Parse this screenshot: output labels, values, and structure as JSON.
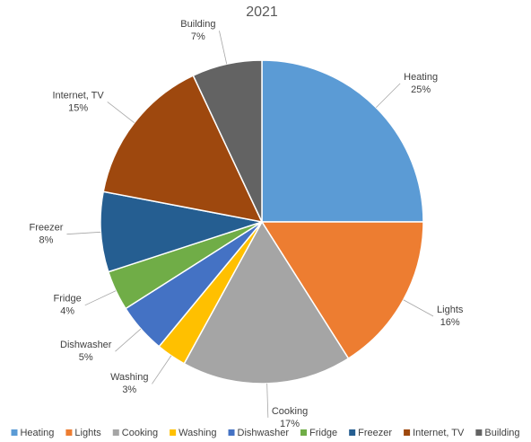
{
  "chart_data": {
    "type": "pie",
    "title": "2021",
    "categories": [
      "Heating",
      "Lights",
      "Cooking",
      "Washing",
      "Dishwasher",
      "Fridge",
      "Freezer",
      "Internet, TV",
      "Building"
    ],
    "values": [
      25,
      16,
      17,
      3,
      5,
      4,
      8,
      15,
      7
    ],
    "value_labels": [
      "25%",
      "16%",
      "17%",
      "3%",
      "5%",
      "4%",
      "8%",
      "15%",
      "7%"
    ],
    "colors": [
      "#5b9bd5",
      "#ed7d31",
      "#a5a5a5",
      "#ffc000",
      "#4472c4",
      "#70ad47",
      "#255e91",
      "#9e480e",
      "#636363"
    ],
    "legend": "bottom"
  }
}
